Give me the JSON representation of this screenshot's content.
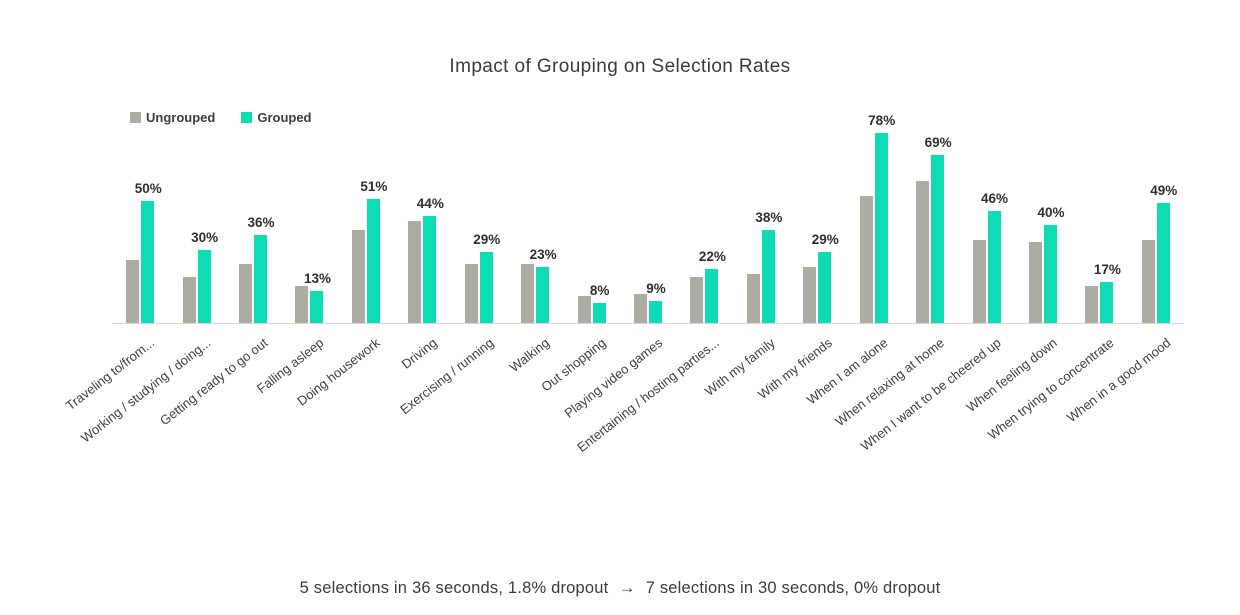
{
  "title": "Impact of Grouping on Selection Rates",
  "legend": {
    "items": [
      {
        "label": "Ungrouped",
        "color": "#ACACA2"
      },
      {
        "label": "Grouped",
        "color": "#0EDCB4"
      }
    ]
  },
  "caption": {
    "left": "5 selections in 36 seconds, 1.8% dropout",
    "arrow": "→",
    "right": "7 selections in 30 seconds, 0% dropout"
  },
  "chart_data": {
    "type": "bar",
    "title": "Impact of Grouping on Selection Rates",
    "categories": [
      "Traveling to/from...",
      "Working / studying / doing...",
      "Getting ready to go out",
      "Falling asleep",
      "Doing housework",
      "Driving",
      "Exercising / running",
      "Walking",
      "Out shopping",
      "Playing video games",
      "Entertaining / hosting parties...",
      "With my family",
      "With my friends",
      "When I am alone",
      "When relaxing at home",
      "When I want to be cheered up",
      "When feeling down",
      "When trying to concentrate",
      "When in a good mood"
    ],
    "series": [
      {
        "name": "Ungrouped",
        "color": "#ACACA2",
        "values": [
          26,
          19,
          24,
          15,
          38,
          42,
          24,
          24,
          11,
          12,
          19,
          20,
          23,
          52,
          58,
          34,
          33,
          15,
          34
        ]
      },
      {
        "name": "Grouped",
        "color": "#0EDCB4",
        "values": [
          50,
          30,
          36,
          13,
          51,
          44,
          29,
          23,
          8,
          9,
          22,
          38,
          29,
          78,
          69,
          46,
          40,
          17,
          49
        ]
      }
    ],
    "data_labels": {
      "series": "Grouped",
      "suffix": "%"
    },
    "ylim": [
      0,
      100
    ],
    "grid": false,
    "axis_line_color": "#D9D9D9",
    "legend_position": "top-left",
    "xlabel": "",
    "ylabel": ""
  }
}
